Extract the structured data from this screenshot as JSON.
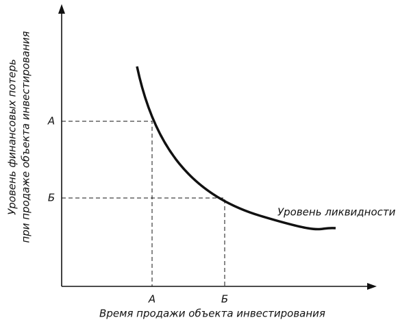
{
  "axes": {
    "y_label": [
      "Уровень финансовых потерь",
      "при продаже объекта инвестирования"
    ],
    "x_label": "Время продажи объекта инвестирования"
  },
  "points": [
    {
      "x_label": "А",
      "y_label": "А"
    },
    {
      "x_label": "Б",
      "y_label": "Б"
    }
  ],
  "curve": {
    "label": "Уровень ликвидности"
  }
}
